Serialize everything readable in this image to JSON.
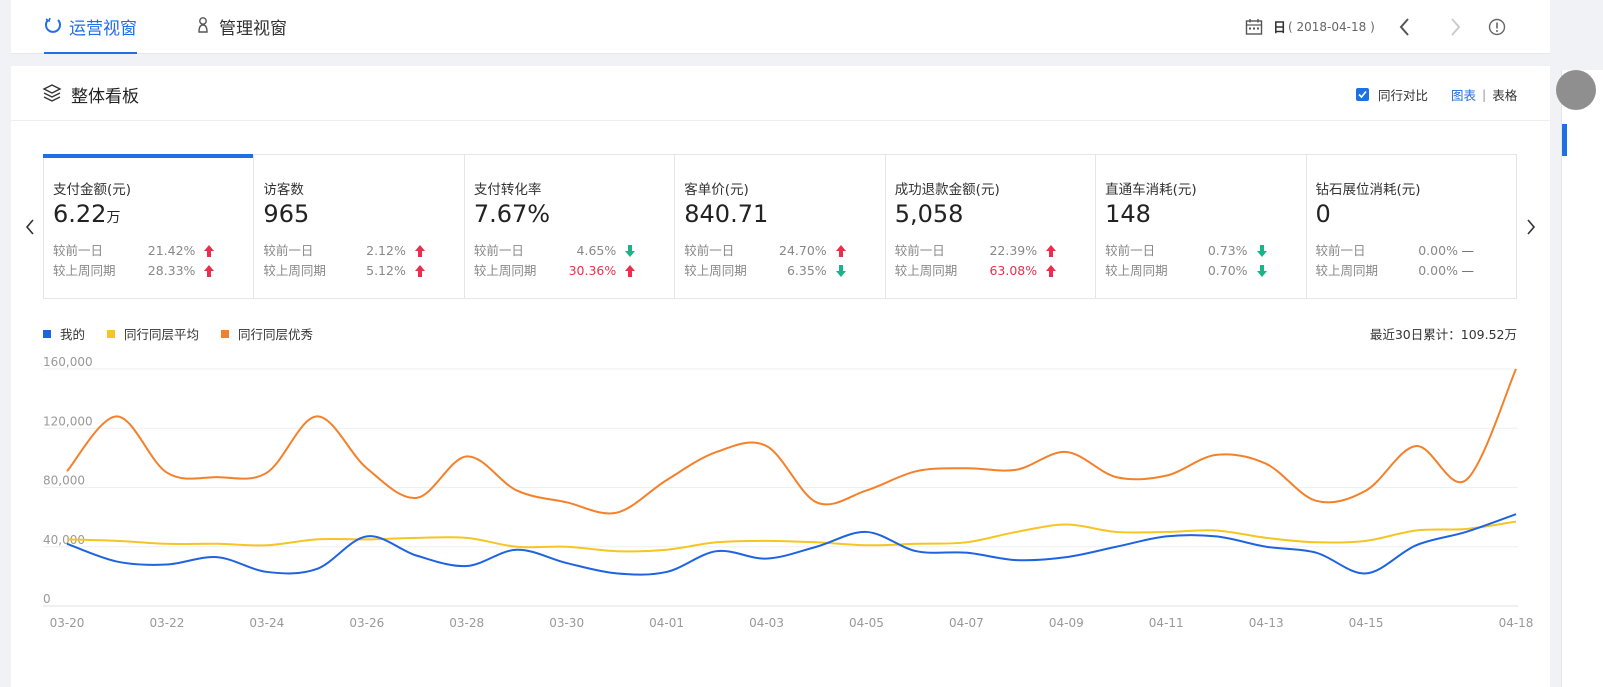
{
  "tabs": [
    {
      "label": "运营视窗",
      "active": true
    },
    {
      "label": "管理视窗",
      "active": false
    }
  ],
  "date": {
    "granularity": "日",
    "value": "( 2018-04-18 )"
  },
  "panel": {
    "title": "整体看板",
    "compare_label": "同行对比",
    "compare_checked": true,
    "view_chart": "图表",
    "view_separator": "|",
    "view_table": "表格"
  },
  "kpis": [
    {
      "name": "支付金额(元)",
      "value": "6.22",
      "unit": "万",
      "selected": true,
      "rows": [
        {
          "label": "较前一日",
          "pct": "21.42%",
          "dir": "up",
          "red": false
        },
        {
          "label": "较上周同期",
          "pct": "28.33%",
          "dir": "up",
          "red": false
        }
      ]
    },
    {
      "name": "访客数",
      "value": "965",
      "unit": "",
      "rows": [
        {
          "label": "较前一日",
          "pct": "2.12%",
          "dir": "up",
          "red": false
        },
        {
          "label": "较上周同期",
          "pct": "5.12%",
          "dir": "up",
          "red": false
        }
      ]
    },
    {
      "name": "支付转化率",
      "value": "7.67%",
      "unit": "",
      "rows": [
        {
          "label": "较前一日",
          "pct": "4.65%",
          "dir": "down",
          "red": false
        },
        {
          "label": "较上周同期",
          "pct": "30.36%",
          "dir": "up",
          "red": true
        }
      ]
    },
    {
      "name": "客单价(元)",
      "value": "840.71",
      "unit": "",
      "rows": [
        {
          "label": "较前一日",
          "pct": "24.70%",
          "dir": "up",
          "red": false
        },
        {
          "label": "较上周同期",
          "pct": "6.35%",
          "dir": "down",
          "red": false
        }
      ]
    },
    {
      "name": "成功退款金额(元)",
      "value": "5,058",
      "unit": "",
      "rows": [
        {
          "label": "较前一日",
          "pct": "22.39%",
          "dir": "up",
          "red": false
        },
        {
          "label": "较上周同期",
          "pct": "63.08%",
          "dir": "up",
          "red": true
        }
      ]
    },
    {
      "name": "直通车消耗(元)",
      "value": "148",
      "unit": "",
      "rows": [
        {
          "label": "较前一日",
          "pct": "0.73%",
          "dir": "down",
          "red": false
        },
        {
          "label": "较上周同期",
          "pct": "0.70%",
          "dir": "down",
          "red": false
        }
      ]
    },
    {
      "name": "钻石展位消耗(元)",
      "value": "0",
      "unit": "",
      "rows": [
        {
          "label": "较前一日",
          "pct": "0.00%",
          "dir": "flat",
          "red": false
        },
        {
          "label": "较上周同期",
          "pct": "0.00%",
          "dir": "flat",
          "red": false
        }
      ]
    }
  ],
  "legend": [
    {
      "name": "我的",
      "color": "#1e63e0"
    },
    {
      "name": "同行同层平均",
      "color": "#f5c523"
    },
    {
      "name": "同行同层优秀",
      "color": "#f5802a"
    }
  ],
  "total_label": "最近30日累计：109.52万",
  "colors": {
    "accent": "#1f6fe5",
    "up": "#e8304e",
    "down": "#19b48a"
  },
  "chart_data": {
    "type": "line",
    "x": [
      "03-20",
      "03-21",
      "03-22",
      "03-23",
      "03-24",
      "03-25",
      "03-26",
      "03-27",
      "03-28",
      "03-29",
      "03-30",
      "03-31",
      "04-01",
      "04-02",
      "04-03",
      "04-04",
      "04-05",
      "04-06",
      "04-07",
      "04-08",
      "04-09",
      "04-10",
      "04-11",
      "04-12",
      "04-13",
      "04-14",
      "04-15",
      "04-16",
      "04-17",
      "04-18"
    ],
    "x_tick_labels": [
      "03-20",
      "03-22",
      "03-24",
      "03-26",
      "03-28",
      "03-30",
      "04-01",
      "04-03",
      "04-05",
      "04-07",
      "04-09",
      "04-11",
      "04-13",
      "04-15",
      "04-18"
    ],
    "y_ticks": [
      "0",
      "40,000",
      "80,000",
      "120,000",
      "160,000"
    ],
    "ylim": [
      0,
      160000
    ],
    "grid": true,
    "legend_position": "top-left",
    "series": [
      {
        "name": "我的",
        "color": "#1e63e0",
        "values": [
          42000,
          30000,
          28000,
          33000,
          23000,
          25000,
          47000,
          34000,
          27000,
          38000,
          29000,
          22000,
          23000,
          37000,
          32000,
          40000,
          50000,
          37000,
          36000,
          31000,
          33000,
          40000,
          47000,
          47000,
          40000,
          36000,
          22000,
          41000,
          50000,
          62000
        ]
      },
      {
        "name": "同行同层平均",
        "color": "#f5c523",
        "values": [
          45000,
          44000,
          42000,
          42000,
          41000,
          45000,
          45000,
          46000,
          46000,
          40000,
          40000,
          37000,
          38000,
          43000,
          44000,
          43000,
          41000,
          42000,
          43000,
          50000,
          55000,
          50000,
          50000,
          51000,
          46000,
          43000,
          44000,
          51000,
          52000,
          57000
        ]
      },
      {
        "name": "同行同层优秀",
        "color": "#f5802a",
        "values": [
          91000,
          128000,
          90000,
          87000,
          90000,
          128000,
          93000,
          73000,
          101000,
          78000,
          70000,
          63000,
          85000,
          104000,
          108000,
          70000,
          78000,
          91000,
          93000,
          92000,
          104000,
          87000,
          88000,
          102000,
          96000,
          71000,
          78000,
          108000,
          85000,
          160000
        ]
      }
    ]
  }
}
